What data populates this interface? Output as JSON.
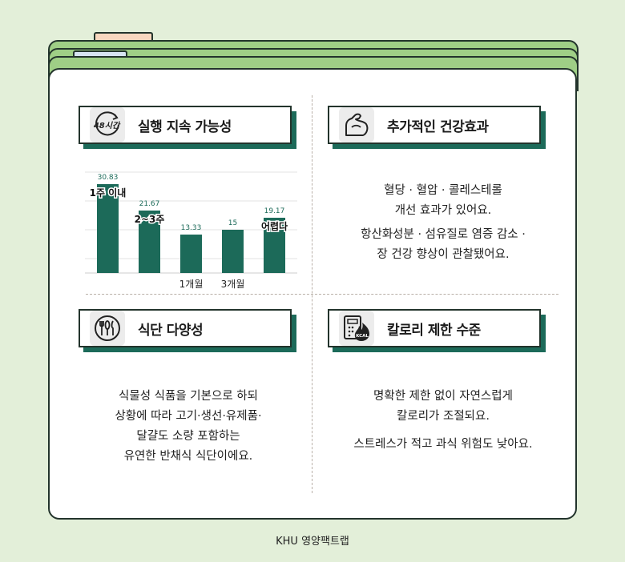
{
  "sections": {
    "sustainability": {
      "icon_label": "48시간",
      "title": "실행 지속 가능성"
    },
    "health": {
      "title": "추가적인 건강효과",
      "lines": [
        "혈당 · 혈압 · 콜레스테롤",
        "개선 효과가 있어요.",
        "항산화성분 · 섬유질로 염증 감소 ·",
        "장 건강 향상이 관찰됐어요."
      ]
    },
    "diet": {
      "title": "식단 다양성",
      "lines": [
        "식물성 식품을 기본으로 하되",
        "상황에 따라 고기·생선·유제품·",
        "달걀도 소량 포함하는",
        "유연한 반채식 식단이에요."
      ]
    },
    "calorie": {
      "icon_label": "KCAL",
      "title": "칼로리 제한 수준",
      "lines": [
        "명확한 제한 없이 자연스럽게",
        "칼로리가 조절되요.",
        "스트레스가 적고 과식 위험도 낮아요."
      ]
    }
  },
  "chart_data": {
    "type": "bar",
    "values": [
      30.83,
      21.67,
      13.33,
      15,
      19.17
    ],
    "value_labels": [
      "30.83",
      "21.67",
      "13.33",
      "15",
      "19.17"
    ],
    "overlay_labels": [
      "1주 이내",
      "2~3주",
      "",
      "",
      "어렵다"
    ],
    "tick_labels": [
      "",
      "",
      "1개월",
      "3개월",
      ""
    ],
    "ylim": [
      0,
      35
    ],
    "grid": true,
    "bar_color": "#1c6a59",
    "value_label_color": "#1c6a59"
  },
  "footer": "KHU 영양팩트랩",
  "colors": {
    "background": "#e3efd9",
    "accent": "#1c6a59",
    "folder": "#9fcf86",
    "border": "#23342c"
  }
}
